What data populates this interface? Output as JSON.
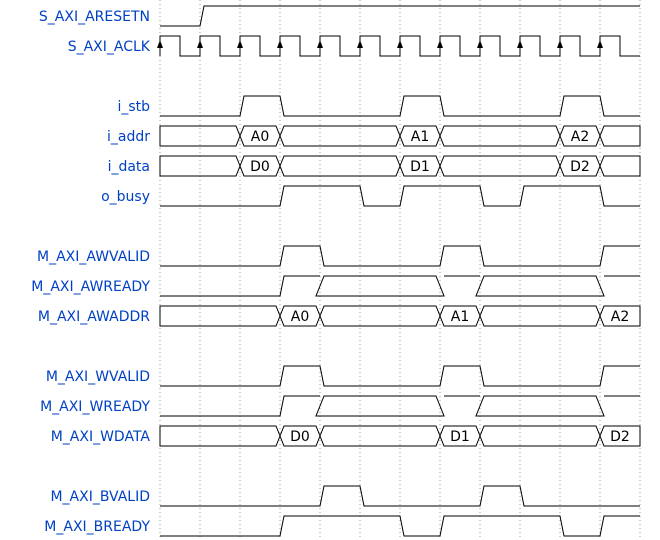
{
  "diagram": {
    "type": "timing",
    "cycles": 12,
    "data_colors": {
      "A0": "#fff2b3",
      "A1": "#fdd9b5",
      "A2": "#bfdcf7",
      "D0": "#fff2b3",
      "D1": "#fdd9b5",
      "D2": "#bfdcf7"
    },
    "groups": [
      {
        "signals": [
          {
            "name": "S_AXI_ARESETN",
            "type": "level",
            "wave": "01.........."
          },
          {
            "name": "S_AXI_ACLK",
            "type": "clock",
            "wave": "pppppppppppp"
          }
        ]
      },
      {
        "signals": [
          {
            "name": "i_stb",
            "type": "level",
            "wave": "0.10..10..10"
          },
          {
            "name": "i_addr",
            "type": "bus",
            "wave": "x.3x..4x..5x",
            "data": [
              "A0",
              "A1",
              "A2"
            ]
          },
          {
            "name": "i_data",
            "type": "bus",
            "wave": "x.3x..4x..5x",
            "data": [
              "D0",
              "D1",
              "D2"
            ]
          },
          {
            "name": "o_busy",
            "type": "level",
            "wave": "0..1.01.01.0"
          }
        ]
      },
      {
        "signals": [
          {
            "name": "M_AXI_AWVALID",
            "type": "level",
            "wave": "0..10..10..1"
          },
          {
            "name": "M_AXI_AWREADY",
            "type": "level",
            "wave": "0..1x..1x..1"
          },
          {
            "name": "M_AXI_AWADDR",
            "type": "bus",
            "wave": "x..3x..4x..5",
            "data": [
              "A0",
              "A1",
              "A2"
            ]
          }
        ]
      },
      {
        "signals": [
          {
            "name": "M_AXI_WVALID",
            "type": "level",
            "wave": "0..10..10..1"
          },
          {
            "name": "M_AXI_WREADY",
            "type": "level",
            "wave": "0..1x..1x..1"
          },
          {
            "name": "M_AXI_WDATA",
            "type": "bus",
            "wave": "x..3x..4x..5",
            "data": [
              "D0",
              "D1",
              "D2"
            ]
          }
        ]
      },
      {
        "signals": [
          {
            "name": "M_AXI_BVALID",
            "type": "level",
            "wave": "0...10..10.."
          },
          {
            "name": "M_AXI_BREADY",
            "type": "level",
            "wave": "0..1..01..01"
          }
        ]
      }
    ]
  }
}
